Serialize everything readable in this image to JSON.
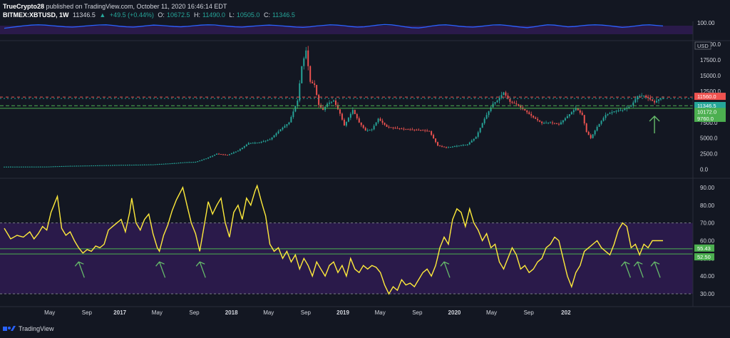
{
  "header": {
    "publisher": "TrueCrypto28",
    "publish_text": "published on TradingView.com, October 11, 2020 16:46:14 EDT",
    "symbol": "BITMEX:XBTUSD, 1W",
    "last": "11346.5",
    "change": "+49.5 (+0.44%)",
    "open_label": "O:",
    "open": "10672.5",
    "high_label": "H:",
    "high": "11490.0",
    "low_label": "L:",
    "low": "10505.0",
    "close_label": "C:",
    "close": "11346.5"
  },
  "footer": {
    "brand": "TradingView"
  },
  "colors": {
    "background": "#131722",
    "up": "#26a69a",
    "down": "#ef5350",
    "rsi_line": "#ffeb3b",
    "top_line": "#2962ff",
    "support_green": "#4caf50",
    "resistance_red": "#ef5350",
    "band_fill": "#2a1a4a",
    "arrow": "#66bb6a"
  },
  "chart_data": [
    {
      "type": "line",
      "panel": "top oscillator",
      "yaxis_label": "100.00",
      "ylim": [
        0,
        100
      ],
      "band": [
        20,
        80
      ],
      "series": [
        {
          "values": [
            62,
            68,
            74,
            80,
            84,
            86,
            84,
            80,
            76,
            72,
            70,
            73,
            78,
            82,
            85,
            86,
            82,
            76,
            72,
            70,
            74,
            80,
            84,
            82,
            78,
            74,
            72,
            75,
            80,
            84,
            86,
            85,
            80,
            76,
            72,
            70,
            74,
            78,
            82,
            84,
            82,
            78,
            74,
            70,
            68,
            72,
            78,
            82,
            86,
            84,
            80,
            74,
            70,
            72,
            78,
            84,
            88,
            86,
            80,
            72,
            66,
            64,
            70,
            78,
            84,
            86,
            82,
            76,
            72,
            70,
            74,
            80,
            85,
            86,
            82,
            76,
            70,
            66,
            72,
            80,
            86,
            84,
            78,
            72,
            74,
            80,
            84,
            86,
            84,
            80,
            74,
            68,
            72,
            78,
            84,
            86,
            82,
            78
          ]
        }
      ]
    },
    {
      "type": "candlestick",
      "panel": "price",
      "currency": "USD",
      "x_tick_labels": [
        "May",
        "Sep",
        "2017",
        "May",
        "Sep",
        "2018",
        "May",
        "Sep",
        "2019",
        "May",
        "Sep",
        "2020",
        "May",
        "Sep",
        "202"
      ],
      "y_tick_labels": [
        "20000.0",
        "17500.0",
        "15000.0",
        "12500.0",
        "10000.0",
        "7500.0",
        "5000.0",
        "2500.0",
        "0.0"
      ],
      "ylim": [
        -500,
        20000
      ],
      "levels": {
        "resistance": 11560.0,
        "resistance_label": "11560.0",
        "last_price": 11346.5,
        "last_price_label": "11346.5",
        "countdown_label": "03:13:47",
        "support_1": 10172.0,
        "support_1_label": "10172.0",
        "support_2": 9760.0,
        "support_2_label": "9760.0"
      },
      "close_anchors": [
        [
          0,
          440
        ],
        [
          20,
          450
        ],
        [
          30,
          560
        ],
        [
          40,
          620
        ],
        [
          55,
          720
        ],
        [
          60,
          740
        ],
        [
          70,
          800
        ],
        [
          80,
          1000
        ],
        [
          85,
          1150
        ],
        [
          90,
          1200
        ],
        [
          95,
          1750
        ],
        [
          100,
          2500
        ],
        [
          105,
          2300
        ],
        [
          110,
          3000
        ],
        [
          115,
          4200
        ],
        [
          120,
          4300
        ],
        [
          125,
          4800
        ],
        [
          130,
          6400
        ],
        [
          134,
          7500
        ],
        [
          138,
          11000
        ],
        [
          140,
          16500
        ],
        [
          142,
          19000
        ],
        [
          144,
          14000
        ],
        [
          146,
          13500
        ],
        [
          148,
          10300
        ],
        [
          150,
          9500
        ],
        [
          152,
          10500
        ],
        [
          155,
          11000
        ],
        [
          158,
          8900
        ],
        [
          160,
          7000
        ],
        [
          164,
          9500
        ],
        [
          167,
          7500
        ],
        [
          170,
          6200
        ],
        [
          173,
          6400
        ],
        [
          176,
          8100
        ],
        [
          180,
          6800
        ],
        [
          184,
          6600
        ],
        [
          190,
          6400
        ],
        [
          196,
          6300
        ],
        [
          200,
          6100
        ],
        [
          204,
          3800
        ],
        [
          208,
          3500
        ],
        [
          214,
          3800
        ],
        [
          218,
          4000
        ],
        [
          222,
          5200
        ],
        [
          226,
          8100
        ],
        [
          230,
          10500
        ],
        [
          232,
          11000
        ],
        [
          235,
          12300
        ],
        [
          238,
          10800
        ],
        [
          241,
          10400
        ],
        [
          245,
          9400
        ],
        [
          249,
          8300
        ],
        [
          253,
          7400
        ],
        [
          257,
          7500
        ],
        [
          261,
          7200
        ],
        [
          265,
          8500
        ],
        [
          269,
          9800
        ],
        [
          272,
          8700
        ],
        [
          274,
          6000
        ],
        [
          276,
          5000
        ],
        [
          279,
          6800
        ],
        [
          283,
          8700
        ],
        [
          287,
          9300
        ],
        [
          291,
          9500
        ],
        [
          295,
          10200
        ],
        [
          298,
          11700
        ],
        [
          301,
          11800
        ],
        [
          303,
          11400
        ],
        [
          306,
          10700
        ],
        [
          308,
          11200
        ],
        [
          310,
          11346.5
        ]
      ]
    },
    {
      "type": "line",
      "panel": "RSI",
      "y_tick_labels": [
        "90.00",
        "80.00",
        "70.00",
        "60.00",
        "50.00",
        "40.00",
        "30.00"
      ],
      "ylim": [
        26,
        94
      ],
      "band": [
        30,
        70
      ],
      "levels": {
        "upper": 55.43,
        "upper_label": "55.43",
        "lower": 52.5,
        "lower_label": "52.50"
      },
      "arrow_x_indices": [
        35,
        73,
        92,
        207,
        292,
        298,
        306
      ],
      "rsi_anchors": [
        [
          0,
          67
        ],
        [
          3,
          61
        ],
        [
          6,
          63
        ],
        [
          9,
          62
        ],
        [
          12,
          65
        ],
        [
          14,
          61
        ],
        [
          16,
          64
        ],
        [
          18,
          68
        ],
        [
          20,
          66
        ],
        [
          22,
          76
        ],
        [
          25,
          85
        ],
        [
          27,
          67
        ],
        [
          29,
          63
        ],
        [
          31,
          65
        ],
        [
          33,
          60
        ],
        [
          35,
          56
        ],
        [
          37,
          53
        ],
        [
          39,
          55
        ],
        [
          41,
          54
        ],
        [
          43,
          57
        ],
        [
          45,
          56
        ],
        [
          47,
          58
        ],
        [
          49,
          66
        ],
        [
          52,
          69
        ],
        [
          55,
          72
        ],
        [
          57,
          65
        ],
        [
          59,
          76
        ],
        [
          60,
          84
        ],
        [
          62,
          70
        ],
        [
          64,
          66
        ],
        [
          66,
          72
        ],
        [
          68,
          75
        ],
        [
          70,
          64
        ],
        [
          72,
          56
        ],
        [
          73,
          54
        ],
        [
          75,
          63
        ],
        [
          77,
          69
        ],
        [
          79,
          77
        ],
        [
          81,
          83
        ],
        [
          84,
          90
        ],
        [
          86,
          80
        ],
        [
          88,
          70
        ],
        [
          90,
          64
        ],
        [
          92,
          54
        ],
        [
          94,
          68
        ],
        [
          96,
          82
        ],
        [
          98,
          75
        ],
        [
          100,
          80
        ],
        [
          102,
          84
        ],
        [
          104,
          70
        ],
        [
          106,
          62
        ],
        [
          108,
          76
        ],
        [
          110,
          80
        ],
        [
          112,
          72
        ],
        [
          114,
          84
        ],
        [
          116,
          80
        ],
        [
          118,
          88
        ],
        [
          119,
          91
        ],
        [
          121,
          82
        ],
        [
          123,
          74
        ],
        [
          125,
          58
        ],
        [
          127,
          54
        ],
        [
          129,
          56
        ],
        [
          131,
          50
        ],
        [
          133,
          54
        ],
        [
          135,
          48
        ],
        [
          137,
          52
        ],
        [
          139,
          44
        ],
        [
          141,
          50
        ],
        [
          143,
          46
        ],
        [
          145,
          40
        ],
        [
          147,
          48
        ],
        [
          149,
          44
        ],
        [
          151,
          40
        ],
        [
          153,
          46
        ],
        [
          155,
          48
        ],
        [
          157,
          42
        ],
        [
          159,
          46
        ],
        [
          161,
          40
        ],
        [
          163,
          50
        ],
        [
          165,
          44
        ],
        [
          167,
          42
        ],
        [
          169,
          46
        ],
        [
          171,
          44
        ],
        [
          173,
          46
        ],
        [
          175,
          45
        ],
        [
          177,
          42
        ],
        [
          179,
          35
        ],
        [
          181,
          30
        ],
        [
          183,
          34
        ],
        [
          185,
          32
        ],
        [
          187,
          38
        ],
        [
          189,
          35
        ],
        [
          191,
          36
        ],
        [
          193,
          34
        ],
        [
          195,
          38
        ],
        [
          197,
          42
        ],
        [
          199,
          44
        ],
        [
          201,
          40
        ],
        [
          203,
          46
        ],
        [
          205,
          56
        ],
        [
          207,
          62
        ],
        [
          209,
          58
        ],
        [
          211,
          72
        ],
        [
          213,
          78
        ],
        [
          215,
          76
        ],
        [
          217,
          68
        ],
        [
          219,
          78
        ],
        [
          221,
          70
        ],
        [
          223,
          66
        ],
        [
          225,
          60
        ],
        [
          227,
          64
        ],
        [
          229,
          56
        ],
        [
          231,
          58
        ],
        [
          233,
          48
        ],
        [
          235,
          44
        ],
        [
          237,
          50
        ],
        [
          239,
          56
        ],
        [
          241,
          52
        ],
        [
          243,
          44
        ],
        [
          245,
          46
        ],
        [
          247,
          42
        ],
        [
          249,
          44
        ],
        [
          251,
          48
        ],
        [
          253,
          50
        ],
        [
          255,
          56
        ],
        [
          257,
          58
        ],
        [
          259,
          62
        ],
        [
          261,
          60
        ],
        [
          263,
          50
        ],
        [
          265,
          40
        ],
        [
          267,
          34
        ],
        [
          269,
          42
        ],
        [
          271,
          46
        ],
        [
          273,
          54
        ],
        [
          275,
          56
        ],
        [
          277,
          58
        ],
        [
          279,
          60
        ],
        [
          281,
          56
        ],
        [
          283,
          54
        ],
        [
          285,
          52
        ],
        [
          287,
          58
        ],
        [
          289,
          66
        ],
        [
          291,
          70
        ],
        [
          293,
          68
        ],
        [
          295,
          56
        ],
        [
          297,
          58
        ],
        [
          299,
          52
        ],
        [
          301,
          58
        ],
        [
          303,
          56
        ],
        [
          305,
          60
        ]
      ]
    }
  ]
}
